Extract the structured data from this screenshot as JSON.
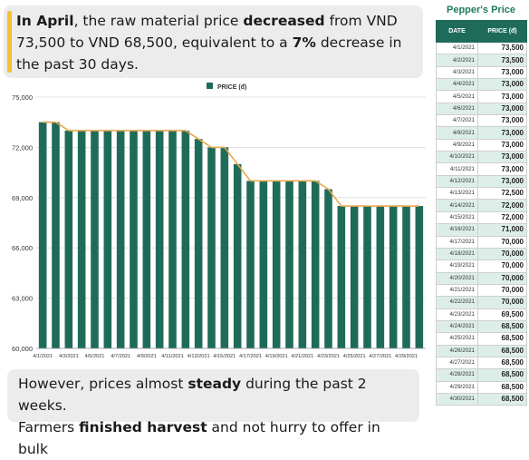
{
  "top_callout": {
    "p1_bold": "In April",
    "p2": ", the raw material price ",
    "p3_bold": "decreased",
    "p4": " from VND 73,500 to VND 68,500, equivalent to a ",
    "p5_bold": "7%",
    "p6": " decrease in the past 30 days."
  },
  "bottom_callout": {
    "line1_a": "However, prices almost  ",
    "line1_bold": "steady",
    "line1_b": " during the past 2 weeks.",
    "line2_a": "Farmers ",
    "line2_bold": "finished harvest",
    "line2_b": " and not hurry to offer in bulk"
  },
  "colors": {
    "bar": "#1f6b5a",
    "line": "#e8a94f",
    "accent": "#f2c230",
    "table_header": "#1f6b5a",
    "table_title": "#1f7a5e",
    "table_stripe": "#ddeee8"
  },
  "chart_data": {
    "type": "bar",
    "legend": "PRICE (đ)",
    "legend_position": "top-center",
    "ylim": [
      60000,
      75000
    ],
    "y_ticks": [
      "60,000",
      "63,000",
      "66,000",
      "69,000",
      "72,000",
      "75,000"
    ],
    "y_tick_values": [
      60000,
      63000,
      66000,
      69000,
      72000,
      75000
    ],
    "grid": true,
    "categories": [
      "4/1/2021",
      "4/2/2021",
      "4/3/2021",
      "4/4/2021",
      "4/5/2021",
      "4/6/2021",
      "4/7/2021",
      "4/8/2021",
      "4/9/2021",
      "4/10/2021",
      "4/11/2021",
      "4/12/2021",
      "4/13/2021",
      "4/14/2021",
      "4/15/2021",
      "4/16/2021",
      "4/17/2021",
      "4/18/2021",
      "4/19/2021",
      "4/20/2021",
      "4/21/2021",
      "4/22/2021",
      "4/23/2021",
      "4/24/2021",
      "4/25/2021",
      "4/26/2021",
      "4/27/2021",
      "4/28/2021",
      "4/29/2021",
      "4/30/2021"
    ],
    "x_tick_labels": [
      "4/1/2021",
      "4/3/2021",
      "4/5/2021",
      "4/7/2021",
      "4/9/2021",
      "4/11/2021",
      "4/13/2021",
      "4/15/2021",
      "4/17/2021",
      "4/19/2021",
      "4/21/2021",
      "4/23/2021",
      "4/25/2021",
      "4/27/2021",
      "4/29/2021"
    ],
    "values": [
      73500,
      73500,
      73000,
      73000,
      73000,
      73000,
      73000,
      73000,
      73000,
      73000,
      73000,
      73000,
      72500,
      72000,
      72000,
      71000,
      70000,
      70000,
      70000,
      70000,
      70000,
      70000,
      69500,
      68500,
      68500,
      68500,
      68500,
      68500,
      68500,
      68500
    ],
    "trend_line": true
  },
  "table": {
    "title": "Pepper's Price",
    "headers": [
      "DATE",
      "PRICE (đ)"
    ],
    "rows": [
      [
        "4/1/2021",
        "73,500"
      ],
      [
        "4/2/2021",
        "73,500"
      ],
      [
        "4/3/2021",
        "73,000"
      ],
      [
        "4/4/2021",
        "73,000"
      ],
      [
        "4/5/2021",
        "73,000"
      ],
      [
        "4/6/2021",
        "73,000"
      ],
      [
        "4/7/2021",
        "73,000"
      ],
      [
        "4/8/2021",
        "73,000"
      ],
      [
        "4/9/2021",
        "73,000"
      ],
      [
        "4/10/2021",
        "73,000"
      ],
      [
        "4/11/2021",
        "73,000"
      ],
      [
        "4/12/2021",
        "73,000"
      ],
      [
        "4/13/2021",
        "72,500"
      ],
      [
        "4/14/2021",
        "72,000"
      ],
      [
        "4/15/2021",
        "72,000"
      ],
      [
        "4/16/2021",
        "71,000"
      ],
      [
        "4/17/2021",
        "70,000"
      ],
      [
        "4/18/2021",
        "70,000"
      ],
      [
        "4/19/2021",
        "70,000"
      ],
      [
        "4/20/2021",
        "70,000"
      ],
      [
        "4/21/2021",
        "70,000"
      ],
      [
        "4/22/2021",
        "70,000"
      ],
      [
        "4/23/2021",
        "69,500"
      ],
      [
        "4/24/2021",
        "68,500"
      ],
      [
        "4/25/2021",
        "68,500"
      ],
      [
        "4/26/2021",
        "68,500"
      ],
      [
        "4/27/2021",
        "68,500"
      ],
      [
        "4/28/2021",
        "68,500"
      ],
      [
        "4/29/2021",
        "68,500"
      ],
      [
        "4/30/2021",
        "68,500"
      ]
    ]
  }
}
